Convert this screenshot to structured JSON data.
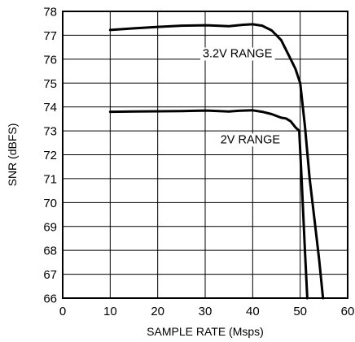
{
  "chart_data": {
    "type": "line",
    "title": "",
    "xlabel": "SAMPLE RATE (Msps)",
    "ylabel": "SNR (dBFS)",
    "xlim": [
      0,
      60
    ],
    "ylim": [
      66,
      78
    ],
    "xticks": [
      0,
      10,
      20,
      30,
      40,
      50,
      60
    ],
    "yticks": [
      66,
      67,
      68,
      69,
      70,
      71,
      72,
      73,
      74,
      75,
      76,
      77,
      78
    ],
    "grid": true,
    "legend": "none",
    "series": [
      {
        "label": "3.2V RANGE",
        "x": [
          10,
          15,
          20,
          25,
          30,
          35,
          38,
          40,
          42,
          44,
          46,
          48,
          49,
          50,
          51,
          52,
          53,
          54,
          54.8
        ],
        "y": [
          77.22,
          77.29,
          77.35,
          77.4,
          77.42,
          77.38,
          77.44,
          77.46,
          77.4,
          77.2,
          76.8,
          76.0,
          75.6,
          75.0,
          73.2,
          71.0,
          69.3,
          67.6,
          66.0
        ]
      },
      {
        "label": "2V RANGE",
        "x": [
          10,
          15,
          20,
          25,
          30,
          35,
          37,
          40,
          42,
          44,
          46,
          47,
          48,
          49,
          49.8,
          50.3,
          51,
          51.5
        ],
        "y": [
          73.8,
          73.81,
          73.82,
          73.83,
          73.85,
          73.81,
          73.84,
          73.86,
          73.8,
          73.7,
          73.55,
          73.52,
          73.4,
          73.15,
          73.0,
          71.0,
          68.0,
          66.0
        ]
      }
    ],
    "annotations": [
      {
        "text": "3.2V RANGE",
        "x": 36.8,
        "y": 76.25
      },
      {
        "text": "2V RANGE",
        "x": 39.5,
        "y": 72.65
      }
    ]
  }
}
